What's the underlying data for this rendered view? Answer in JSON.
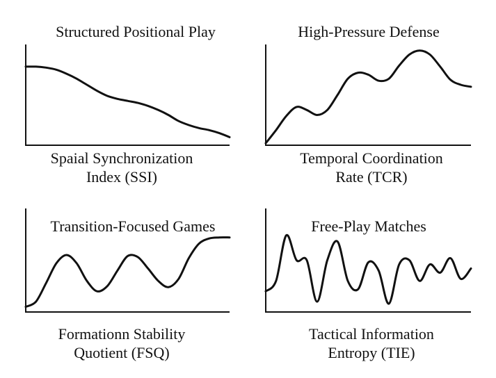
{
  "chart_data": [
    {
      "type": "line",
      "title": "Structured Positional Play",
      "xlabel": "Spaial Synchronization\nIndex (SSI)",
      "ylabel": "",
      "x": [
        0,
        0.05,
        0.1,
        0.15,
        0.2,
        0.25,
        0.3,
        0.35,
        0.4,
        0.45,
        0.5,
        0.55,
        0.6,
        0.65,
        0.7,
        0.75,
        0.8,
        0.85,
        0.9,
        0.95,
        1.0
      ],
      "series": [
        {
          "values": [
            0.78,
            0.78,
            0.77,
            0.75,
            0.71,
            0.66,
            0.6,
            0.54,
            0.49,
            0.46,
            0.44,
            0.42,
            0.39,
            0.35,
            0.3,
            0.24,
            0.2,
            0.17,
            0.15,
            0.12,
            0.08
          ]
        }
      ],
      "xlim": [
        0,
        1
      ],
      "ylim": [
        0,
        1
      ],
      "grid": false
    },
    {
      "type": "line",
      "title": "High-Pressure Defense",
      "xlabel": "Temporal Coordination\nRate (TCR)",
      "ylabel": "",
      "x": [
        0,
        0.05,
        0.1,
        0.15,
        0.2,
        0.25,
        0.3,
        0.35,
        0.4,
        0.45,
        0.5,
        0.55,
        0.6,
        0.65,
        0.7,
        0.75,
        0.8,
        0.85,
        0.9,
        0.95,
        1.0
      ],
      "series": [
        {
          "values": [
            0.02,
            0.15,
            0.29,
            0.38,
            0.35,
            0.3,
            0.35,
            0.5,
            0.66,
            0.72,
            0.7,
            0.64,
            0.66,
            0.79,
            0.9,
            0.94,
            0.9,
            0.78,
            0.65,
            0.6,
            0.58
          ]
        }
      ],
      "xlim": [
        0,
        1
      ],
      "ylim": [
        0,
        1
      ],
      "grid": false
    },
    {
      "type": "line",
      "title": "Transition-Focused Games",
      "xlabel": "Formationn Stability\nQuotient (FSQ)",
      "ylabel": "",
      "x": [
        0,
        0.05,
        0.1,
        0.15,
        0.2,
        0.25,
        0.3,
        0.35,
        0.4,
        0.45,
        0.5,
        0.55,
        0.6,
        0.65,
        0.7,
        0.75,
        0.8,
        0.85,
        0.9,
        0.95,
        1.0
      ],
      "series": [
        {
          "values": [
            0.05,
            0.1,
            0.28,
            0.47,
            0.55,
            0.47,
            0.3,
            0.2,
            0.25,
            0.4,
            0.54,
            0.53,
            0.42,
            0.3,
            0.24,
            0.32,
            0.52,
            0.66,
            0.71,
            0.72,
            0.72
          ]
        }
      ],
      "xlim": [
        0,
        1
      ],
      "ylim": [
        0,
        1
      ],
      "grid": false
    },
    {
      "type": "line",
      "title": "Free-Play Matches",
      "xlabel": "Tactical Information\nEntropy (TIE)",
      "ylabel": "",
      "x": [
        0,
        0.05,
        0.1,
        0.15,
        0.2,
        0.25,
        0.3,
        0.35,
        0.4,
        0.45,
        0.5,
        0.55,
        0.6,
        0.65,
        0.7,
        0.75,
        0.8,
        0.85,
        0.9,
        0.95,
        1.0
      ],
      "series": [
        {
          "values": [
            0.2,
            0.3,
            0.74,
            0.5,
            0.5,
            0.1,
            0.5,
            0.68,
            0.3,
            0.22,
            0.48,
            0.4,
            0.08,
            0.46,
            0.5,
            0.3,
            0.46,
            0.38,
            0.52,
            0.32,
            0.42
          ]
        }
      ],
      "xlim": [
        0,
        1
      ],
      "ylim": [
        0,
        1
      ],
      "grid": false
    }
  ]
}
